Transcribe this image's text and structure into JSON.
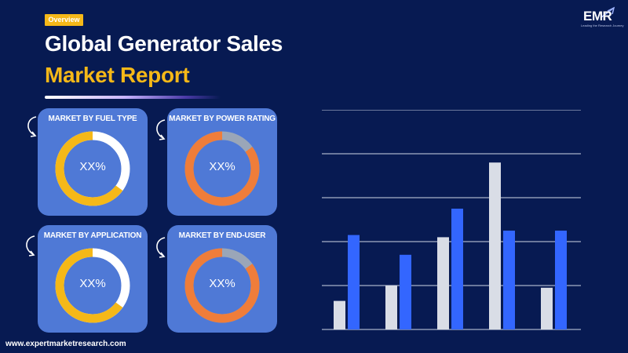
{
  "badge": "Overview",
  "title": {
    "line1": "Global Generator Sales",
    "line2": "Market Report"
  },
  "logo": {
    "name": "EMR",
    "tagline": "Leading the Research Journey"
  },
  "cards": [
    {
      "label": "MARKET BY FUEL TYPE",
      "value": "XX%",
      "ring_color": "#f5b818",
      "track_color": "#ffffff",
      "fill_fraction": 0.65
    },
    {
      "label": "MARKET BY POWER RATING",
      "value": "XX%",
      "ring_color": "#ef7d3a",
      "track_color": "#9aa6b8",
      "fill_fraction": 0.85
    },
    {
      "label": "MARKET BY APPLICATION",
      "value": "XX%",
      "ring_color": "#f5b818",
      "track_color": "#ffffff",
      "fill_fraction": 0.65
    },
    {
      "label": "MARKET BY END-USER",
      "value": "XX%",
      "ring_color": "#ef7d3a",
      "track_color": "#9aa6b8",
      "fill_fraction": 0.85
    }
  ],
  "website": "www.expertmarketresearch.com",
  "chart_data": {
    "type": "bar",
    "categories": [
      "",
      "",
      "",
      "",
      ""
    ],
    "series": [
      {
        "values": [
          1.3,
          2.0,
          4.2,
          7.6,
          1.9
        ],
        "color": "#d9dde6"
      },
      {
        "values": [
          4.3,
          3.4,
          5.5,
          4.5,
          4.5
        ],
        "color": "#3366ff"
      }
    ],
    "ylim": [
      0,
      10
    ],
    "grid": true
  }
}
